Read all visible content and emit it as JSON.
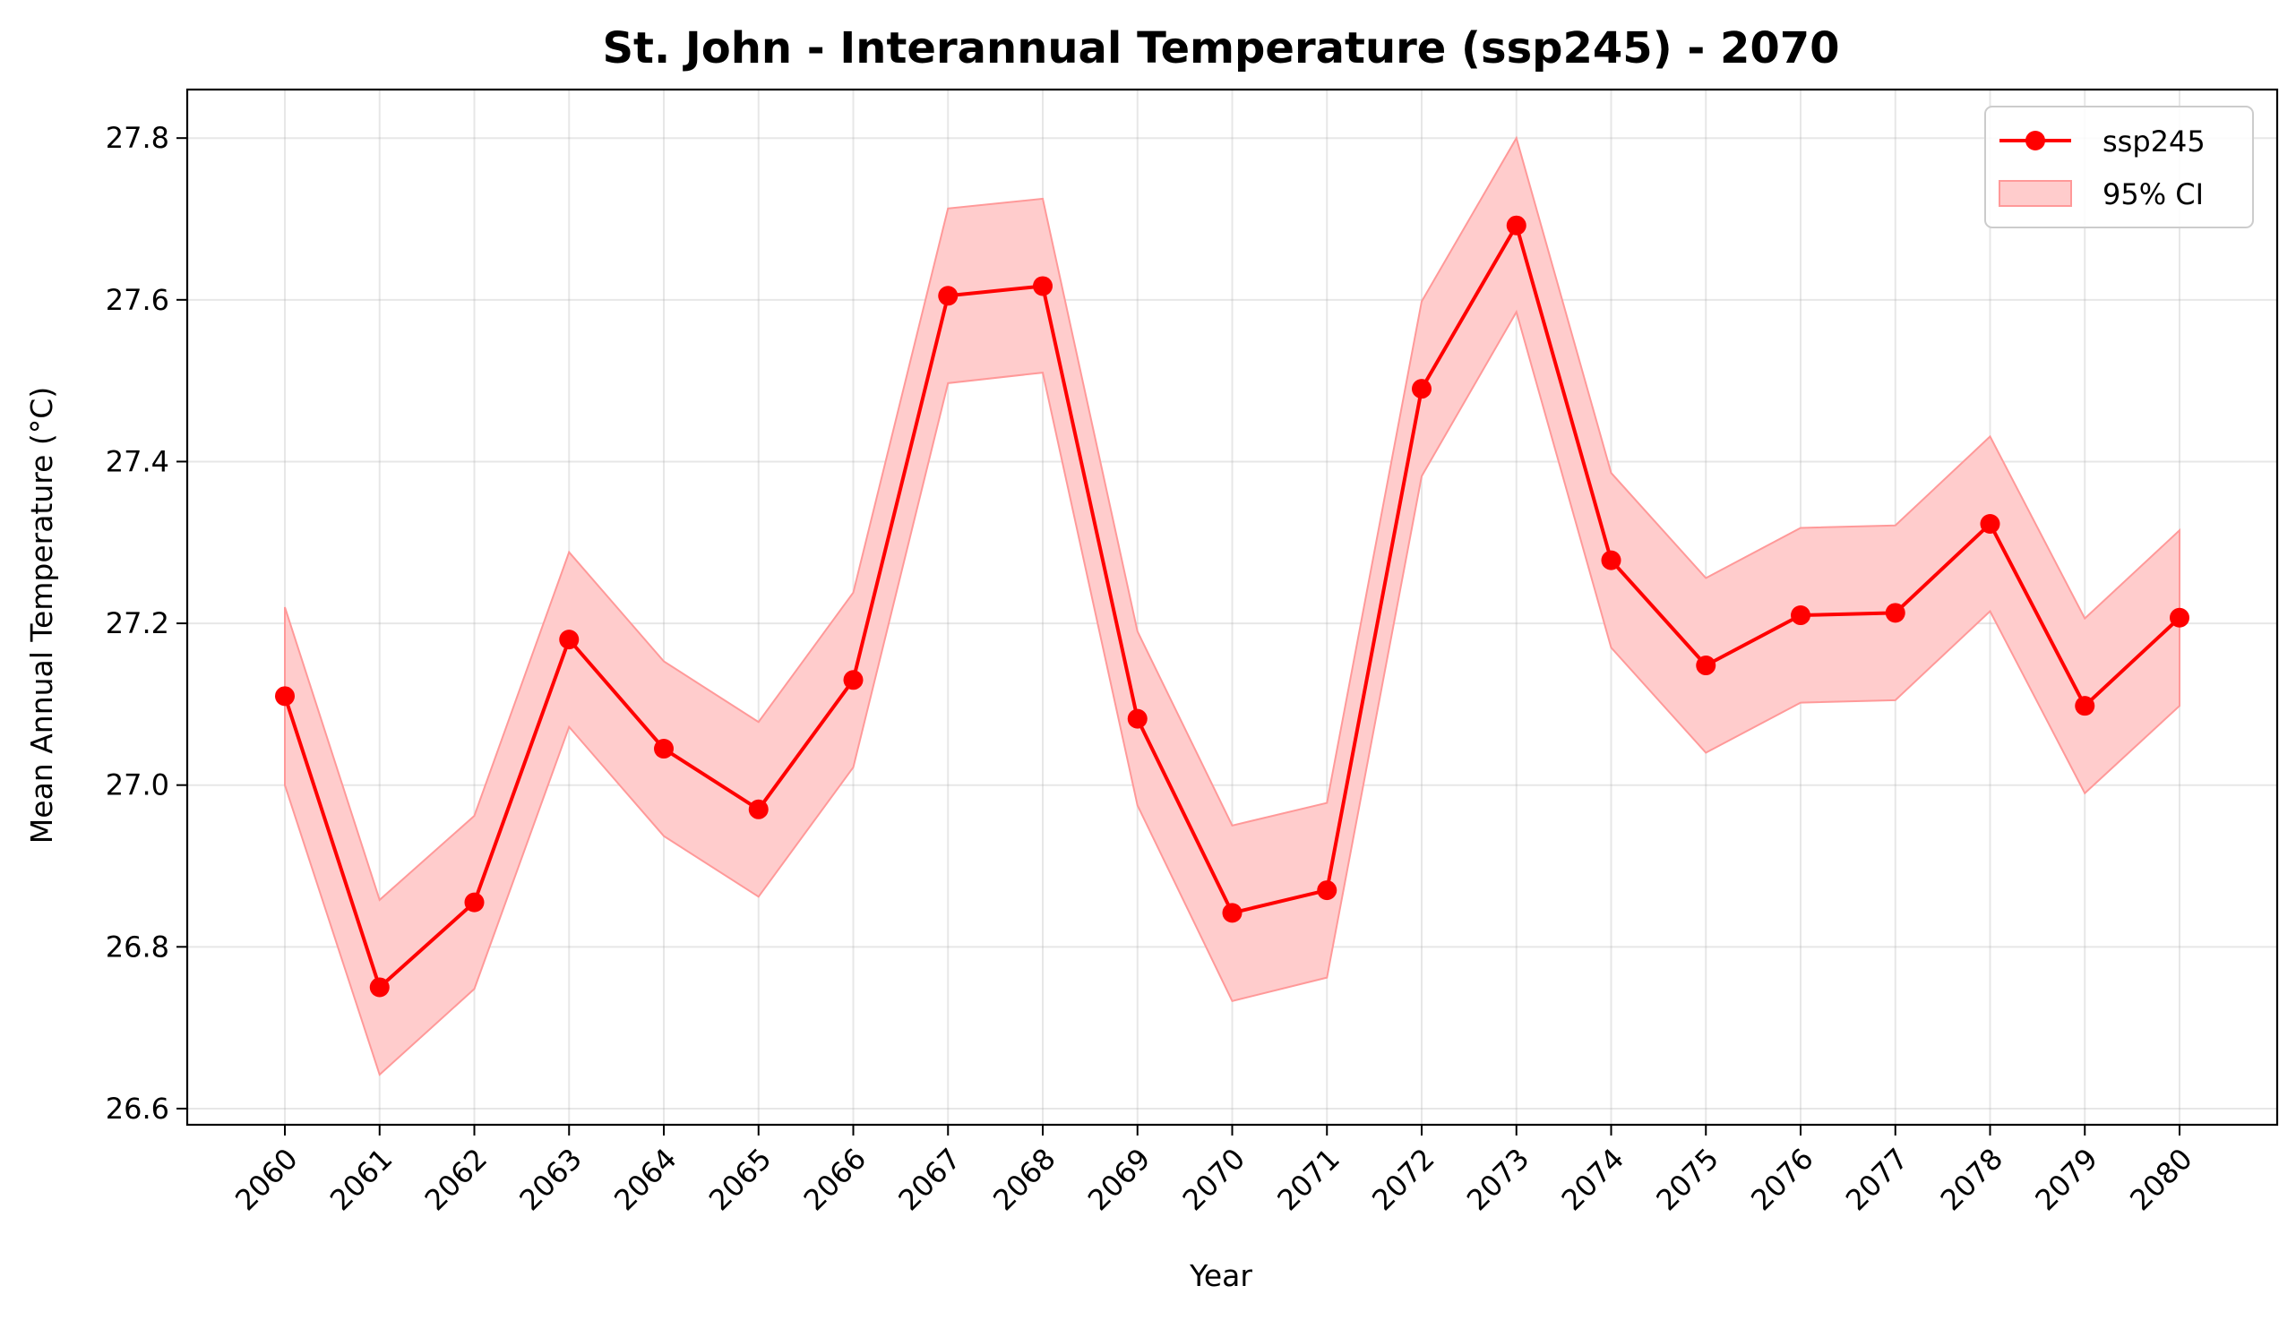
{
  "chart_data": {
    "type": "line",
    "title": "St. John - Interannual Temperature (ssp245) - 2070",
    "xlabel": "Year",
    "ylabel": "Mean Annual Temperature (°C)",
    "x": [
      2060,
      2061,
      2062,
      2063,
      2064,
      2065,
      2066,
      2067,
      2068,
      2069,
      2070,
      2071,
      2072,
      2073,
      2074,
      2075,
      2076,
      2077,
      2078,
      2079,
      2080
    ],
    "ylim": [
      26.58,
      27.86
    ],
    "yticks": [
      26.6,
      26.8,
      27.0,
      27.2,
      27.4,
      27.6,
      27.8
    ],
    "grid": true,
    "legend_position": "top-right",
    "series": [
      {
        "name": "ssp245",
        "color": "#ff0000",
        "values": [
          27.11,
          26.75,
          26.855,
          27.18,
          27.045,
          26.97,
          27.13,
          27.605,
          27.617,
          27.082,
          26.842,
          26.87,
          27.49,
          27.692,
          27.278,
          27.148,
          27.21,
          27.213,
          27.323,
          27.098,
          27.207
        ]
      }
    ],
    "ci": {
      "name": "95% CI",
      "color": "#ffcccc",
      "edge_color": "#ff9999",
      "lower": [
        27.0,
        26.642,
        26.748,
        27.072,
        26.937,
        26.862,
        27.022,
        27.497,
        27.51,
        26.975,
        26.733,
        26.762,
        27.382,
        27.585,
        27.17,
        27.04,
        27.102,
        27.105,
        27.215,
        26.99,
        27.098
      ],
      "upper": [
        27.22,
        26.858,
        26.962,
        27.288,
        27.153,
        27.078,
        27.238,
        27.713,
        27.725,
        27.19,
        26.95,
        26.978,
        27.598,
        27.8,
        27.386,
        27.256,
        27.318,
        27.321,
        27.431,
        27.206,
        27.315
      ]
    }
  }
}
